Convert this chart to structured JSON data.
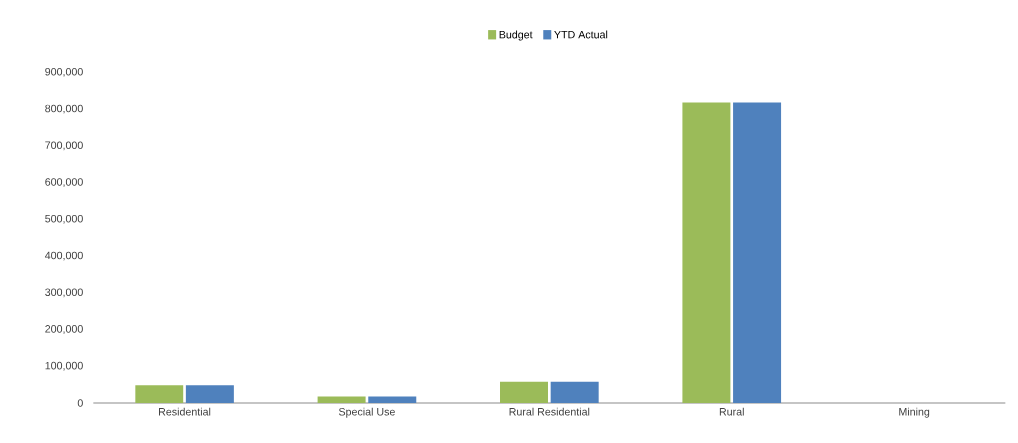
{
  "chart_data": {
    "type": "bar",
    "categories": [
      "Residential",
      "Special Use",
      "Rural Residential",
      "Rural",
      "Mining"
    ],
    "series": [
      {
        "name": "Budget",
        "color": "#9bbb59",
        "values": [
          48000,
          18000,
          58000,
          818000,
          0
        ]
      },
      {
        "name": "YTD Actual",
        "color": "#4f81bd",
        "values": [
          48000,
          18000,
          58000,
          818000,
          0
        ]
      }
    ],
    "ylim": [
      0,
      900000
    ],
    "yticks": [
      {
        "value": 0,
        "label": "0"
      },
      {
        "value": 100000,
        "label": "100,000"
      },
      {
        "value": 200000,
        "label": "200,000"
      },
      {
        "value": 300000,
        "label": "300,000"
      },
      {
        "value": 400000,
        "label": "400,000"
      },
      {
        "value": 500000,
        "label": "500,000"
      },
      {
        "value": 600000,
        "label": "600,000"
      },
      {
        "value": 700000,
        "label": "700,000"
      },
      {
        "value": 800000,
        "label": "800,000"
      },
      {
        "value": 900000,
        "label": "900,000"
      }
    ],
    "grid": false,
    "legend": "top"
  }
}
